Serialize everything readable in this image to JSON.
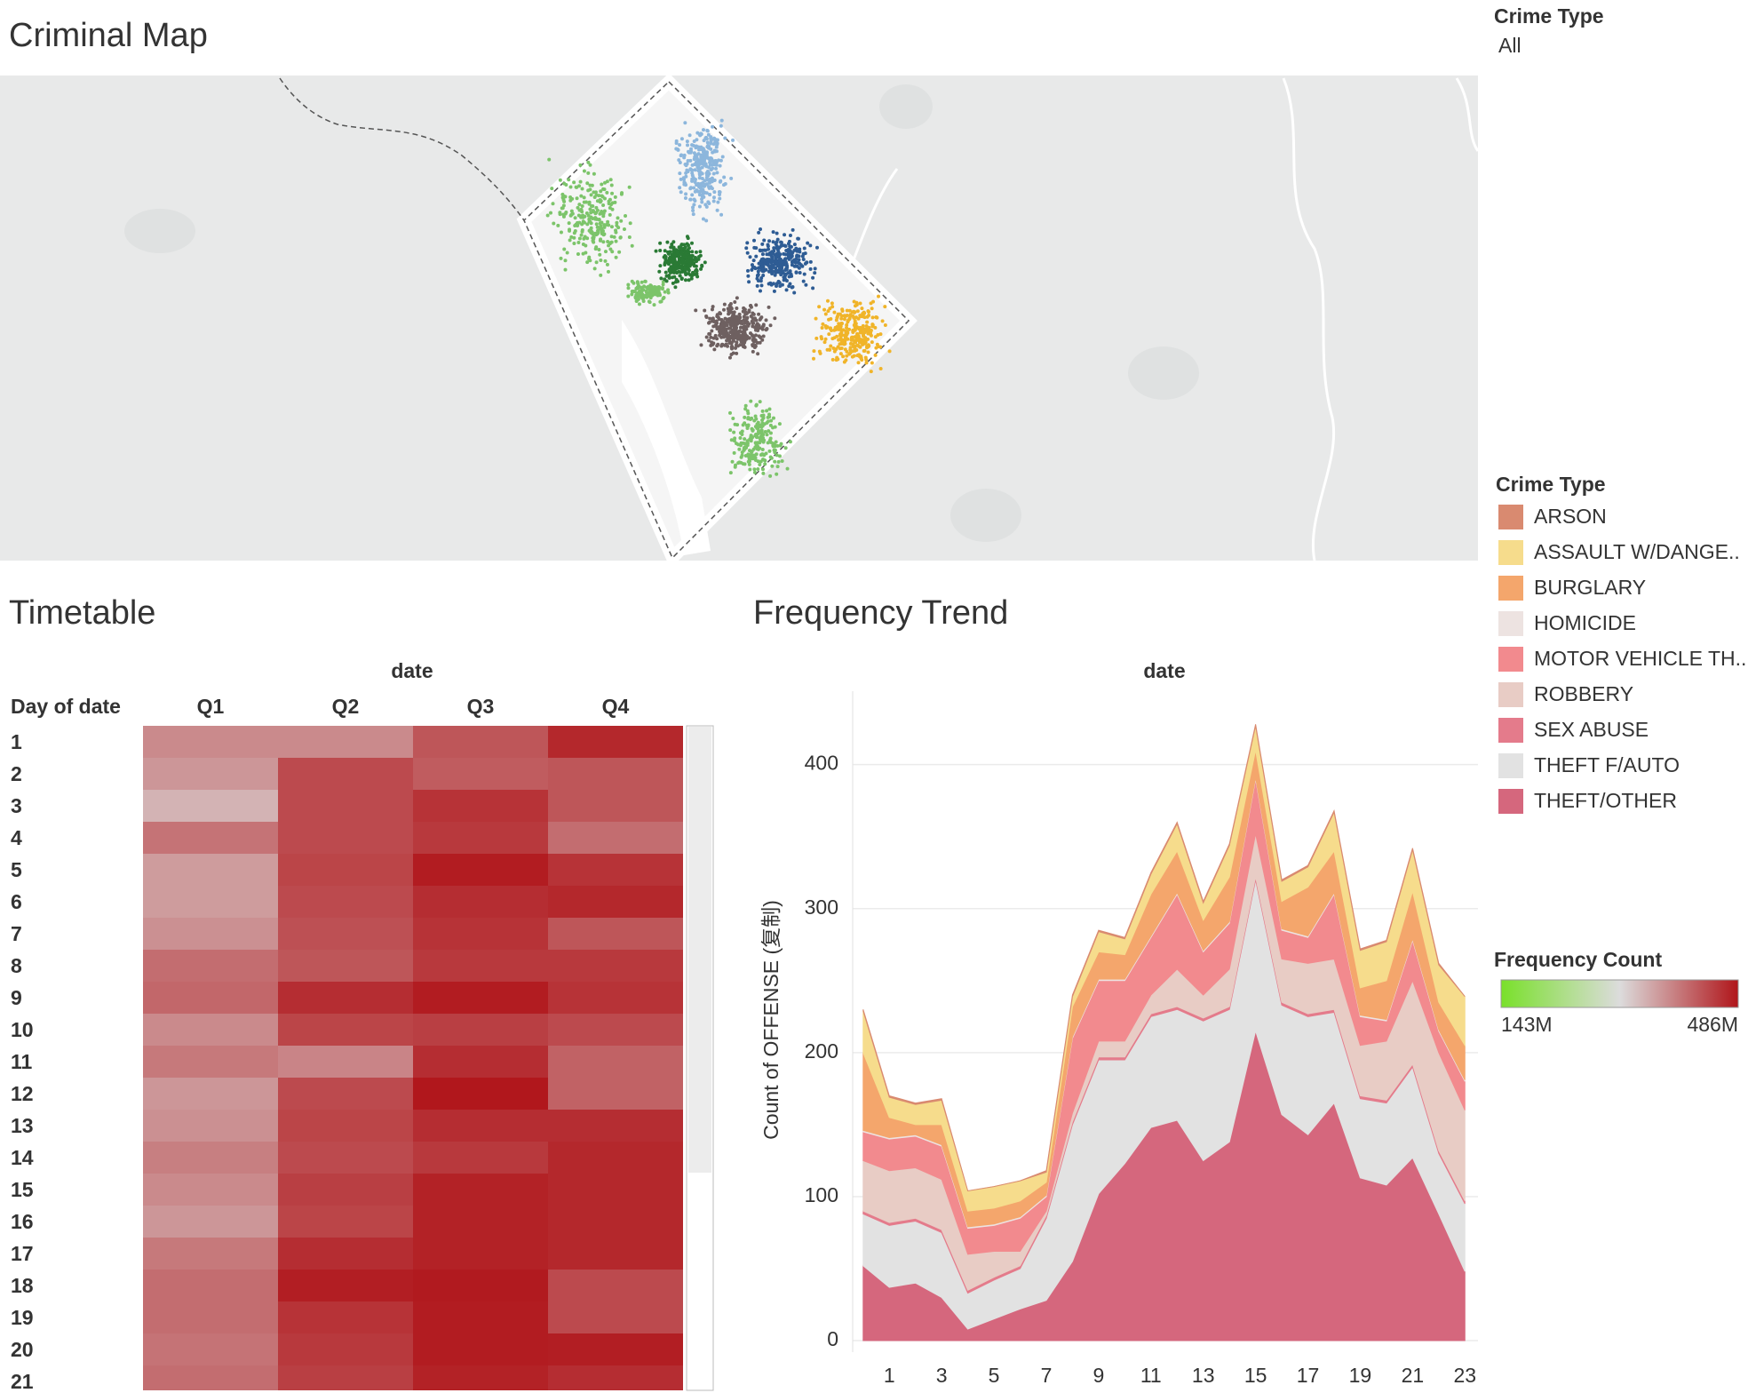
{
  "map_title": "Criminal Map",
  "filter": {
    "title": "Crime Type",
    "value": "All"
  },
  "chart_data": [
    {
      "type": "heatmap",
      "title": "Timetable",
      "x_title": "date",
      "y_title": "Day of date",
      "columns": [
        "Q1",
        "Q2",
        "Q3",
        "Q4"
      ],
      "rows": [
        "1",
        "2",
        "3",
        "4",
        "5",
        "6",
        "7",
        "8",
        "9",
        "10",
        "11",
        "12",
        "13",
        "14",
        "15",
        "16",
        "17",
        "18",
        "19",
        "20",
        "21"
      ],
      "values": [
        [
          385,
          385,
          430,
          470
        ],
        [
          375,
          440,
          425,
          430
        ],
        [
          350,
          440,
          460,
          430
        ],
        [
          405,
          440,
          455,
          410
        ],
        [
          370,
          445,
          480,
          460
        ],
        [
          370,
          440,
          465,
          470
        ],
        [
          380,
          435,
          460,
          430
        ],
        [
          410,
          430,
          455,
          455
        ],
        [
          415,
          465,
          480,
          460
        ],
        [
          385,
          445,
          450,
          440
        ],
        [
          400,
          390,
          465,
          420
        ],
        [
          375,
          440,
          484,
          420
        ],
        [
          380,
          445,
          465,
          465
        ],
        [
          395,
          440,
          455,
          470
        ],
        [
          385,
          450,
          475,
          470
        ],
        [
          375,
          445,
          475,
          470
        ],
        [
          400,
          465,
          475,
          470
        ],
        [
          410,
          478,
          482,
          440
        ],
        [
          410,
          460,
          480,
          440
        ],
        [
          405,
          455,
          480,
          478
        ],
        [
          410,
          450,
          475,
          465
        ]
      ],
      "color_legend": {
        "title": "Frequency Count",
        "colors": [
          "#79e02a",
          "#dcdcdc",
          "#b0151a"
        ],
        "range": [
          {
            "value": 143,
            "label": "143M"
          },
          {
            "value": 486,
            "label": "486M"
          }
        ]
      }
    },
    {
      "type": "stacked-area",
      "title": "Frequency Trend",
      "x_title": "date",
      "y_title": "Count of OFFENSE (复制)",
      "legend_title": "Crime Type",
      "x": [
        0,
        1,
        2,
        3,
        4,
        5,
        6,
        7,
        8,
        9,
        10,
        11,
        12,
        13,
        14,
        15,
        16,
        17,
        18,
        19,
        20,
        21,
        22,
        23
      ],
      "xlim": [
        -0.4,
        23.5
      ],
      "xticks": [
        1,
        3,
        5,
        7,
        9,
        11,
        13,
        15,
        17,
        19,
        21,
        23
      ],
      "ylim": [
        -8,
        451
      ],
      "yticks": [
        0,
        100,
        200,
        300,
        400
      ],
      "grid": true,
      "series": [
        {
          "name": "ARSON",
          "color": "#d98a70",
          "values": [
            1,
            1,
            1,
            1,
            0,
            0,
            0,
            1,
            1,
            1,
            1,
            1,
            1,
            1,
            1,
            1,
            1,
            1,
            1,
            1,
            1,
            1,
            1,
            0
          ]
        },
        {
          "name": "ASSAULT W/DANGE..",
          "color": "#f6dc8c",
          "values": [
            29,
            14,
            14,
            17,
            14,
            15,
            14,
            7,
            7,
            14,
            11,
            14,
            19,
            12,
            22,
            17,
            14,
            14,
            27,
            26,
            27,
            29,
            26,
            34
          ]
        },
        {
          "name": "BURGLARY",
          "color": "#f4a66c",
          "values": [
            54,
            14,
            7,
            14,
            11,
            11,
            11,
            9,
            21,
            19,
            17,
            29,
            29,
            21,
            31,
            19,
            19,
            34,
            29,
            19,
            27,
            33,
            19,
            24
          ]
        },
        {
          "name": "HOMICIDE",
          "color": "#ede3e1",
          "values": [
            1,
            1,
            1,
            1,
            1,
            1,
            1,
            1,
            1,
            1,
            1,
            1,
            1,
            1,
            1,
            1,
            1,
            1,
            1,
            1,
            1,
            1,
            1,
            1
          ]
        },
        {
          "name": "MOTOR VEHICLE TH..",
          "color": "#f28a8e",
          "values": [
            20,
            22,
            22,
            23,
            18,
            18,
            23,
            10,
            52,
            42,
            42,
            40,
            52,
            30,
            32,
            38,
            20,
            18,
            45,
            20,
            14,
            28,
            15,
            20
          ]
        },
        {
          "name": "ROBBERY",
          "color": "#e8ccc5",
          "values": [
            35,
            36,
            35,
            35,
            25,
            18,
            10,
            3,
            6,
            11,
            11,
            13,
            26,
            16,
            26,
            30,
            30,
            35,
            35,
            35,
            41,
            58,
            68,
            63
          ]
        },
        {
          "name": "SEX ABUSE",
          "color": "#e47b8b",
          "values": [
            2,
            2,
            2,
            2,
            2,
            2,
            2,
            2,
            2,
            2,
            2,
            2,
            2,
            2,
            2,
            2,
            2,
            2,
            2,
            2,
            2,
            2,
            2,
            2
          ]
        },
        {
          "name": "THEFT F/AUTO",
          "color": "#e2e2e2",
          "values": [
            36,
            43,
            43,
            45,
            25,
            27,
            28,
            57,
            95,
            93,
            72,
            77,
            77,
            97,
            92,
            105,
            76,
            82,
            63,
            55,
            57,
            63,
            42,
            47
          ]
        },
        {
          "name": "THEFT/OTHER",
          "color": "#d5677d",
          "values": [
            52,
            37,
            40,
            30,
            8,
            15,
            22,
            28,
            55,
            102,
            123,
            148,
            153,
            125,
            138,
            215,
            157,
            143,
            165,
            113,
            108,
            127,
            88,
            48
          ]
        }
      ]
    }
  ]
}
